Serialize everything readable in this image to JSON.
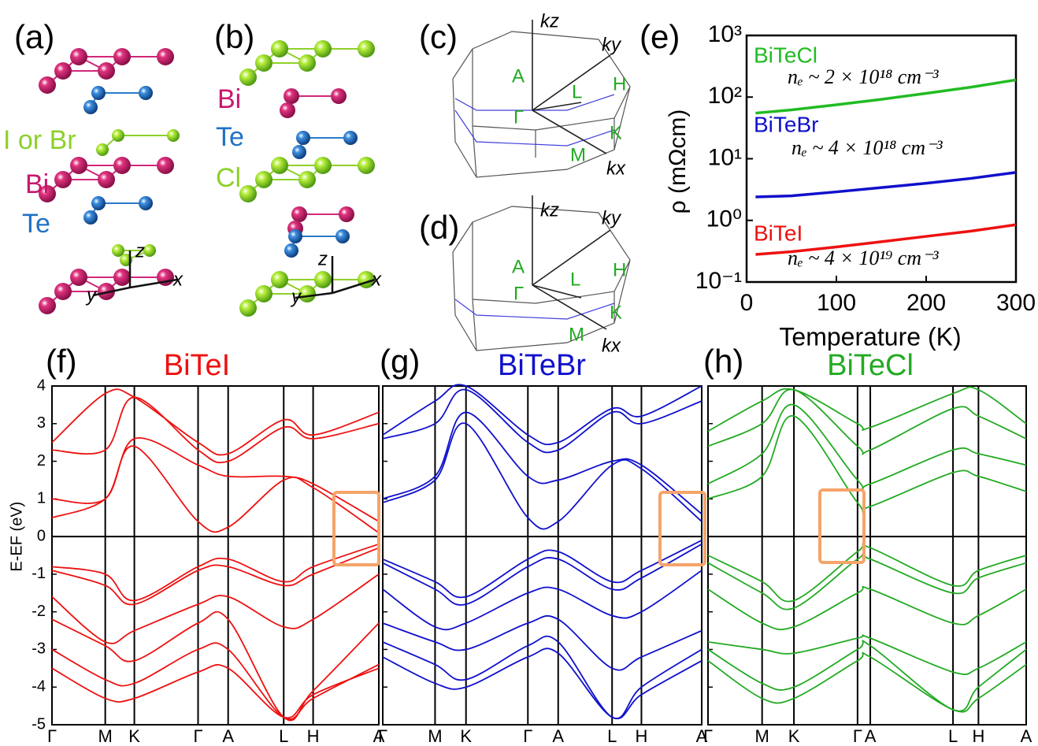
{
  "panels": {
    "a": "(a)",
    "b": "(b)",
    "c": "(c)",
    "d": "(d)",
    "e": "(e)",
    "f": "(f)",
    "g": "(g)",
    "h": "(h)"
  },
  "structure_a": {
    "labels": [
      "I or Br",
      "Bi",
      "Te"
    ],
    "axes": [
      "z",
      "x",
      "y"
    ]
  },
  "structure_b": {
    "labels": [
      "Bi",
      "Te",
      "Cl"
    ],
    "axes": [
      "z",
      "x",
      "y"
    ]
  },
  "bz_c": {
    "axes": [
      "kz",
      "ky",
      "kx"
    ],
    "points": [
      "A",
      "Γ",
      "L",
      "H",
      "K",
      "M"
    ]
  },
  "bz_d": {
    "axes": [
      "kz",
      "ky",
      "kx"
    ],
    "points": [
      "A",
      "Γ",
      "L",
      "H",
      "K",
      "M"
    ]
  },
  "chart_data": [
    {
      "type": "line",
      "log_y": true,
      "xlabel": "Temperature (K)",
      "ylabel": "ρ (mΩcm)",
      "x": [
        10,
        50,
        100,
        150,
        200,
        250,
        300
      ],
      "xlim": [
        0,
        300
      ],
      "xticks": [
        0,
        100,
        200,
        300
      ],
      "ylim": [
        0.1,
        1000
      ],
      "yticks": [
        {
          "value": 1000,
          "label": "10³"
        },
        {
          "value": 100,
          "label": "10²"
        },
        {
          "value": 10,
          "label": "10¹"
        },
        {
          "value": 1,
          "label": "10⁰"
        },
        {
          "value": 0.1,
          "label": "10⁻¹"
        }
      ],
      "series": [
        {
          "name": "BiTeCl",
          "color": "#22bb22",
          "values": [
            55,
            62,
            75,
            92,
            115,
            145,
            190
          ]
        },
        {
          "name": "BiTeBr",
          "color": "#1010cc",
          "values": [
            2.4,
            2.5,
            2.9,
            3.4,
            4.0,
            4.8,
            6.0
          ]
        },
        {
          "name": "BiTeI",
          "color": "#ee1111",
          "values": [
            0.28,
            0.31,
            0.37,
            0.45,
            0.55,
            0.67,
            0.85
          ]
        }
      ],
      "annotations": [
        "nₑ ~  2 × 10¹⁸ cm⁻³",
        "nₑ ~ 4 × 10¹⁸ cm⁻³",
        "nₑ ~ 4 × 10¹⁹ cm⁻³"
      ]
    },
    {
      "type": "line",
      "title": "BiTeI",
      "ylabel": "E-EF (eV)",
      "categories": [
        "Γ",
        "M",
        "K",
        "Γ",
        "A",
        "L",
        "H",
        "A"
      ],
      "ylim": [
        -5,
        4
      ],
      "yticks": [
        -5,
        -4,
        -3,
        -2,
        -1,
        0,
        1,
        2,
        3,
        4
      ],
      "series": [
        {
          "color": "#ee1111",
          "values": [
            0.5,
            1.0,
            2.4,
            0.4,
            0.25,
            1.5,
            1.3,
            0.1
          ]
        },
        {
          "color": "#ee1111",
          "values": [
            1.0,
            1.0,
            2.6,
            1.9,
            1.6,
            1.6,
            1.4,
            0.4
          ]
        },
        {
          "color": "#ee1111",
          "values": [
            2.3,
            2.3,
            3.7,
            2.3,
            2.0,
            2.9,
            2.6,
            3.0
          ]
        },
        {
          "color": "#ee1111",
          "values": [
            2.5,
            3.8,
            3.7,
            2.5,
            2.2,
            3.1,
            2.7,
            3.3
          ]
        },
        {
          "color": "#ee1111",
          "values": [
            -0.8,
            -1.0,
            -1.7,
            -0.8,
            -0.6,
            -1.2,
            -0.8,
            -0.2
          ]
        },
        {
          "color": "#ee1111",
          "values": [
            -0.9,
            -1.3,
            -1.8,
            -0.9,
            -0.8,
            -1.3,
            -1.0,
            -0.3
          ]
        },
        {
          "color": "#ee1111",
          "values": [
            -1.6,
            -2.8,
            -2.5,
            -1.8,
            -1.6,
            -2.4,
            -2.2,
            -1.0
          ]
        },
        {
          "color": "#ee1111",
          "values": [
            -2.2,
            -2.9,
            -3.3,
            -2.3,
            -2.2,
            -4.8,
            -4.1,
            -2.3
          ]
        },
        {
          "color": "#ee1111",
          "values": [
            -3.0,
            -3.8,
            -3.9,
            -3.0,
            -3.0,
            -4.8,
            -4.3,
            -3.4
          ]
        },
        {
          "color": "#ee1111",
          "values": [
            -3.5,
            -4.3,
            -4.3,
            -3.6,
            -3.5,
            -4.8,
            -4.2,
            -3.5
          ]
        }
      ]
    },
    {
      "type": "line",
      "title": "BiTeBr",
      "categories": [
        "Γ",
        "M",
        "K",
        "Γ",
        "A",
        "L",
        "H",
        "A"
      ],
      "ylim": [
        -5,
        4
      ],
      "yticks": [
        -5,
        -4,
        -3,
        -2,
        -1,
        0,
        1,
        2,
        3,
        4
      ],
      "series": [
        {
          "color": "#1010cc",
          "values": [
            0.9,
            1.5,
            3.0,
            0.5,
            0.4,
            1.9,
            1.8,
            0.4
          ]
        },
        {
          "color": "#1010cc",
          "values": [
            1.0,
            1.6,
            3.3,
            1.6,
            1.5,
            2.0,
            1.9,
            0.6
          ]
        },
        {
          "color": "#1010cc",
          "values": [
            2.6,
            3.0,
            3.9,
            2.5,
            2.3,
            3.3,
            3.0,
            3.6
          ]
        },
        {
          "color": "#1010cc",
          "values": [
            2.7,
            3.6,
            4.0,
            2.7,
            2.5,
            3.4,
            3.2,
            4.0
          ]
        },
        {
          "color": "#1010cc",
          "values": [
            -0.6,
            -1.2,
            -1.6,
            -0.6,
            -0.4,
            -1.2,
            -0.9,
            -0.1
          ]
        },
        {
          "color": "#1010cc",
          "values": [
            -0.7,
            -1.4,
            -1.8,
            -0.8,
            -0.6,
            -1.4,
            -1.1,
            -0.2
          ]
        },
        {
          "color": "#1010cc",
          "values": [
            -1.4,
            -2.4,
            -2.3,
            -1.5,
            -1.4,
            -2.1,
            -2.0,
            -0.9
          ]
        },
        {
          "color": "#1010cc",
          "values": [
            -2.3,
            -2.8,
            -3.0,
            -2.3,
            -2.2,
            -3.5,
            -3.2,
            -2.5
          ]
        },
        {
          "color": "#1010cc",
          "values": [
            -2.8,
            -3.4,
            -3.8,
            -2.9,
            -2.8,
            -4.8,
            -4.0,
            -3.0
          ]
        },
        {
          "color": "#1010cc",
          "values": [
            -3.2,
            -3.9,
            -4.0,
            -3.2,
            -3.1,
            -4.8,
            -4.2,
            -3.3
          ]
        }
      ]
    },
    {
      "type": "line",
      "title": "BiTeCl",
      "categories": [
        "Γ",
        "M",
        "K",
        "Γ",
        "A",
        "L",
        "H",
        "A"
      ],
      "ylim": [
        -5,
        4
      ],
      "yticks": [
        -5,
        -4,
        -3,
        -2,
        -1,
        0,
        1,
        2,
        3,
        4
      ],
      "series": [
        {
          "color": "#22aa22",
          "values": [
            1.0,
            1.6,
            3.2,
            0.9,
            0.8,
            1.7,
            1.6,
            1.2
          ]
        },
        {
          "color": "#22aa22",
          "values": [
            1.4,
            2.2,
            3.5,
            1.5,
            1.4,
            2.3,
            2.2,
            1.9
          ]
        },
        {
          "color": "#22aa22",
          "values": [
            2.4,
            3.0,
            3.9,
            2.4,
            2.3,
            3.4,
            3.2,
            2.6
          ]
        },
        {
          "color": "#22aa22",
          "values": [
            2.8,
            3.6,
            3.9,
            3.0,
            2.9,
            3.8,
            3.9,
            3.0
          ]
        },
        {
          "color": "#22aa22",
          "values": [
            -0.5,
            -1.2,
            -1.7,
            -0.4,
            -0.3,
            -1.3,
            -0.9,
            -0.5
          ]
        },
        {
          "color": "#22aa22",
          "values": [
            -0.7,
            -1.5,
            -1.9,
            -0.6,
            -0.6,
            -1.5,
            -1.1,
            -0.7
          ]
        },
        {
          "color": "#22aa22",
          "values": [
            -1.4,
            -2.3,
            -2.4,
            -1.5,
            -1.4,
            -2.3,
            -2.1,
            -1.4
          ]
        },
        {
          "color": "#22aa22",
          "values": [
            -2.8,
            -3.0,
            -3.1,
            -2.7,
            -2.7,
            -3.6,
            -3.5,
            -2.8
          ]
        },
        {
          "color": "#22aa22",
          "values": [
            -3.0,
            -3.9,
            -4.0,
            -3.0,
            -2.9,
            -4.6,
            -4.0,
            -3.0
          ]
        },
        {
          "color": "#22aa22",
          "values": [
            -3.3,
            -4.3,
            -4.3,
            -3.3,
            -3.2,
            -4.6,
            -4.3,
            -3.4
          ]
        }
      ]
    }
  ]
}
